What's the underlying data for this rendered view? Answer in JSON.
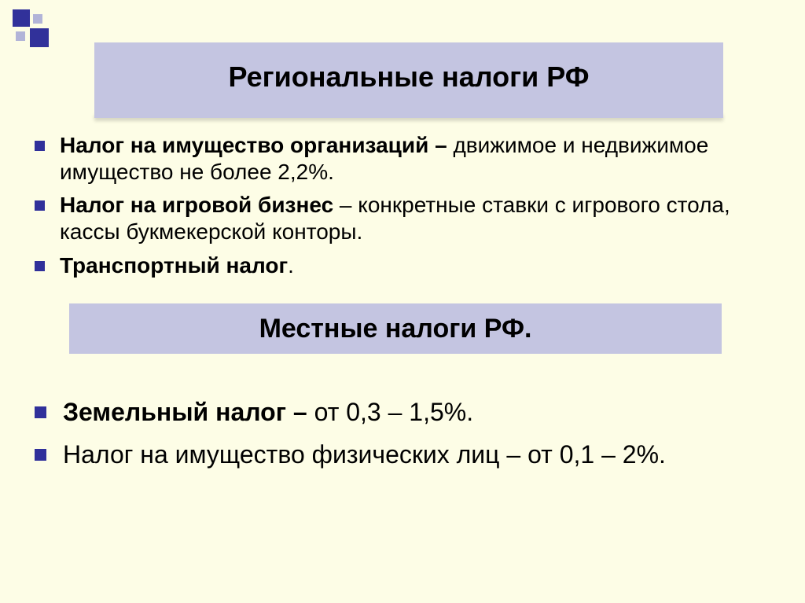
{
  "decor": {
    "accent_color": "#31319a",
    "light_accent": "#b2b4d8",
    "bar_color": "#c4c5e1",
    "background": "#fdfde6"
  },
  "title1": "Региональные налоги РФ",
  "list1": [
    {
      "bold": "Налог на имущество организаций – ",
      "rest": "движимое и недвижимое имущество не более 2,2%."
    },
    {
      "bold": "Налог на игровой бизнес",
      "rest": " – конкретные ставки с игрового стола, кассы букмекерской конторы."
    },
    {
      "bold": "Транспортный налог",
      "rest": "."
    }
  ],
  "title2": "Местные налоги РФ.",
  "list2": [
    {
      "bold": "Земельный налог – ",
      "rest": "от 0,3 – 1,5%."
    },
    {
      "bold": "",
      "rest": "Налог на имущество физических лиц – от 0,1 – 2%."
    }
  ]
}
